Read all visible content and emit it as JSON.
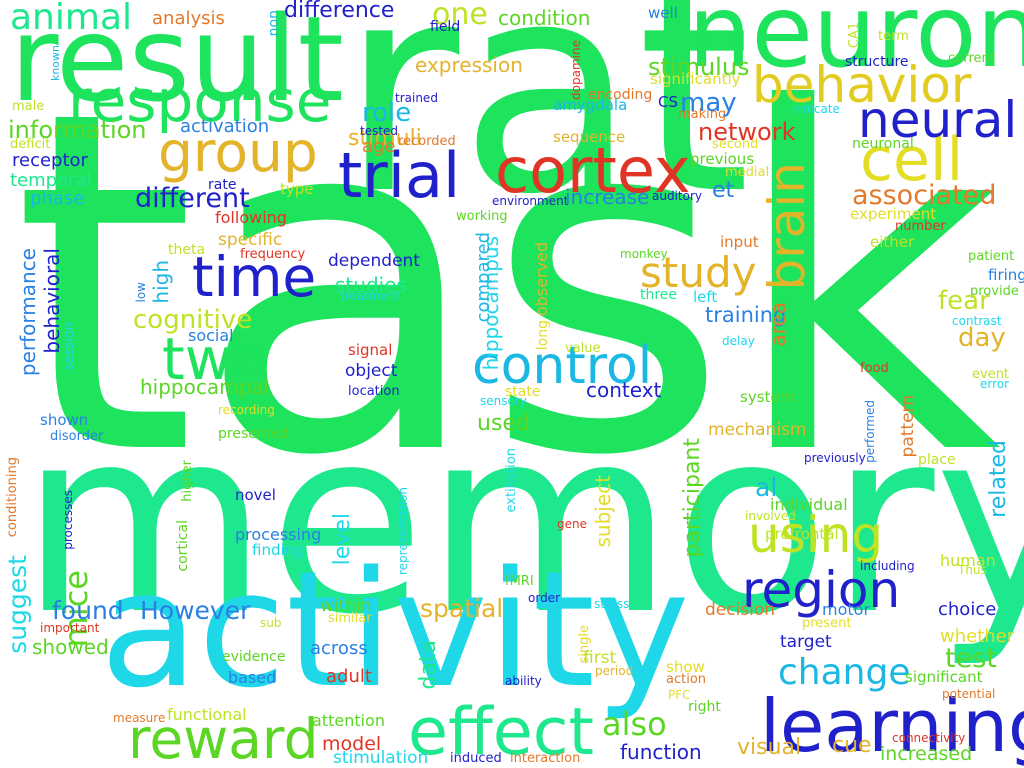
{
  "words": [
    {
      "id": "task",
      "text": "task",
      "color": "#1de35d"
    },
    {
      "id": "memory",
      "text": "memory",
      "color": "#1de88e"
    },
    {
      "id": "rat",
      "text": "rat",
      "color": "#1de35d"
    },
    {
      "id": "result",
      "text": "result",
      "color": "#1de35d"
    },
    {
      "id": "neuron",
      "text": "neuron",
      "color": "#1de35d"
    },
    {
      "id": "activity",
      "text": "activity",
      "color": "#1ed8e8"
    },
    {
      "id": "learning",
      "text": "learning",
      "color": "#2121cc"
    },
    {
      "id": "response",
      "text": "response",
      "color": "#1de35d"
    },
    {
      "id": "behavior",
      "text": "behavior",
      "color": "#e3cc21"
    },
    {
      "id": "cell",
      "text": "cell",
      "color": "#e3dd25"
    },
    {
      "id": "trial",
      "text": "trial",
      "color": "#2121cc"
    },
    {
      "id": "cortex",
      "text": "cortex",
      "color": "#e03524"
    },
    {
      "id": "group",
      "text": "group",
      "color": "#e3b32a"
    },
    {
      "id": "neural",
      "text": "neural",
      "color": "#2121cc"
    },
    {
      "id": "brain",
      "text": "brain",
      "color": "#e3b32a"
    },
    {
      "id": "time",
      "text": "time",
      "color": "#2121cc"
    },
    {
      "id": "two",
      "text": "two",
      "color": "#1de35d"
    },
    {
      "id": "control",
      "text": "control",
      "color": "#1ab8e3"
    },
    {
      "id": "study",
      "text": "study",
      "color": "#e3b32a"
    },
    {
      "id": "region",
      "text": "region",
      "color": "#2121cc"
    },
    {
      "id": "effect",
      "text": "effect",
      "color": "#1de88e"
    },
    {
      "id": "reward",
      "text": "reward",
      "color": "#5cd624"
    },
    {
      "id": "using",
      "text": "using",
      "color": "#bde324"
    },
    {
      "id": "change",
      "text": "change",
      "color": "#1ab8e3"
    },
    {
      "id": "animal",
      "text": "animal",
      "color": "#1de88e"
    },
    {
      "id": "one",
      "text": "one",
      "color": "#bde324"
    },
    {
      "id": "difference",
      "text": "difference",
      "color": "#2121cc"
    },
    {
      "id": "condition",
      "text": "condition",
      "color": "#5cd624"
    },
    {
      "id": "analysis",
      "text": "analysis",
      "color": "#e3792a"
    },
    {
      "id": "well",
      "text": "well",
      "color": "#2a80e3"
    },
    {
      "id": "field",
      "text": "field",
      "color": "#2121cc"
    },
    {
      "id": "non",
      "text": "non",
      "color": "#1ab8e3"
    },
    {
      "id": "term",
      "text": "term",
      "color": "#bde324"
    },
    {
      "id": "CA1",
      "text": "CA1",
      "color": "#bde324"
    },
    {
      "id": "current",
      "text": "current",
      "color": "#5cd624"
    },
    {
      "id": "structure",
      "text": "structure",
      "color": "#2121cc"
    },
    {
      "id": "dopamine",
      "text": "dopamine",
      "color": "#e03524"
    },
    {
      "id": "expression",
      "text": "expression",
      "color": "#e3b32a"
    },
    {
      "id": "stimulus",
      "text": "stimulus",
      "color": "#5cd624"
    },
    {
      "id": "significantly",
      "text": "significantly",
      "color": "#e3dd25"
    },
    {
      "id": "encoding",
      "text": "encoding",
      "color": "#e3792a"
    },
    {
      "id": "information",
      "text": "information",
      "color": "#5cd624"
    },
    {
      "id": "known",
      "text": "known",
      "color": "#1ab8e3"
    },
    {
      "id": "male",
      "text": "male",
      "color": "#bde324"
    },
    {
      "id": "role",
      "text": "role",
      "color": "#1ab8e3"
    },
    {
      "id": "stimuli",
      "text": "stimuli",
      "color": "#e3b32a"
    },
    {
      "id": "trained",
      "text": "trained",
      "color": "#2121cc"
    },
    {
      "id": "tested",
      "text": "tested",
      "color": "#2121cc"
    },
    {
      "id": "amygdala",
      "text": "amygdala",
      "color": "#1ab8e3"
    },
    {
      "id": "CS",
      "text": "CS",
      "color": "#2121cc"
    },
    {
      "id": "making",
      "text": "making",
      "color": "#e3792a"
    },
    {
      "id": "indicate",
      "text": "indicate",
      "color": "#1ed8e8"
    },
    {
      "id": "may",
      "text": "may",
      "color": "#2a80e3"
    },
    {
      "id": "activation",
      "text": "activation",
      "color": "#2a80e3"
    },
    {
      "id": "sequence",
      "text": "sequence",
      "color": "#e3b32a"
    },
    {
      "id": "deficit",
      "text": "deficit",
      "color": "#bde324"
    },
    {
      "id": "recorded",
      "text": "recorded",
      "color": "#e3792a"
    },
    {
      "id": "age",
      "text": "age",
      "color": "#e3792a"
    },
    {
      "id": "network",
      "text": "network",
      "color": "#e03524"
    },
    {
      "id": "second",
      "text": "second",
      "color": "#e3dd25"
    },
    {
      "id": "neuronal",
      "text": "neuronal",
      "color": "#5cd624"
    },
    {
      "id": "receptor",
      "text": "receptor",
      "color": "#2121cc"
    },
    {
      "id": "temporal",
      "text": "temporal",
      "color": "#1de88e"
    },
    {
      "id": "rate",
      "text": "rate",
      "color": "#2121cc"
    },
    {
      "id": "type",
      "text": "type",
      "color": "#bde324"
    },
    {
      "id": "previous",
      "text": "previous",
      "color": "#5cd624"
    },
    {
      "id": "medial",
      "text": "medial",
      "color": "#e3dd25"
    },
    {
      "id": "different",
      "text": "different",
      "color": "#2121cc"
    },
    {
      "id": "et",
      "text": "et",
      "color": "#2a80e3"
    },
    {
      "id": "associated",
      "text": "associated",
      "color": "#e3792a"
    },
    {
      "id": "phase",
      "text": "phase",
      "color": "#1ab8e3"
    },
    {
      "id": "environment",
      "text": "environment",
      "color": "#2121cc"
    },
    {
      "id": "auditory",
      "text": "auditory",
      "color": "#2121cc"
    },
    {
      "id": "increase",
      "text": "increase",
      "color": "#2a80e3"
    },
    {
      "id": "experiment",
      "text": "experiment",
      "color": "#e3dd25"
    },
    {
      "id": "following",
      "text": "following",
      "color": "#e03524"
    },
    {
      "id": "working",
      "text": "working",
      "color": "#5cd624"
    },
    {
      "id": "number",
      "text": "number",
      "color": "#e03524"
    },
    {
      "id": "either",
      "text": "either",
      "color": "#bde324"
    },
    {
      "id": "specific",
      "text": "specific",
      "color": "#e3b32a"
    },
    {
      "id": "frequency",
      "text": "frequency",
      "color": "#e03524"
    },
    {
      "id": "theta",
      "text": "theta",
      "color": "#bde324"
    },
    {
      "id": "input",
      "text": "input",
      "color": "#e3792a"
    },
    {
      "id": "monkey",
      "text": "monkey",
      "color": "#5cd624"
    },
    {
      "id": "patient",
      "text": "patient",
      "color": "#5cd624"
    },
    {
      "id": "high",
      "text": "high",
      "color": "#1ab8e3"
    },
    {
      "id": "dependent",
      "text": "dependent",
      "color": "#2121cc"
    },
    {
      "id": "hippocampus",
      "text": "hippocampus",
      "color": "#1ed8e8"
    },
    {
      "id": "firing",
      "text": "firing",
      "color": "#2a80e3"
    },
    {
      "id": "provide",
      "text": "provide",
      "color": "#5cd624"
    },
    {
      "id": "low",
      "text": "low",
      "color": "#2a80e3"
    },
    {
      "id": "studies",
      "text": "studies",
      "color": "#1de88e"
    },
    {
      "id": "treatment",
      "text": "treatment",
      "color": "#1ed8e8"
    },
    {
      "id": "compared",
      "text": "compared",
      "color": "#1ab8e3"
    },
    {
      "id": "observed",
      "text": "observed",
      "color": "#e3b32a"
    },
    {
      "id": "three",
      "text": "three",
      "color": "#1de88e"
    },
    {
      "id": "left",
      "text": "left",
      "color": "#1ed8e8"
    },
    {
      "id": "performance",
      "text": "performance",
      "color": "#2a80e3"
    },
    {
      "id": "behavioral",
      "text": "behavioral",
      "color": "#2121cc"
    },
    {
      "id": "cognitive",
      "text": "cognitive",
      "color": "#bde324"
    },
    {
      "id": "fear",
      "text": "fear",
      "color": "#bde324"
    },
    {
      "id": "training",
      "text": "training",
      "color": "#2a80e3"
    },
    {
      "id": "day",
      "text": "day",
      "color": "#e3b32a"
    },
    {
      "id": "contrast",
      "text": "contrast",
      "color": "#1ed8e8"
    },
    {
      "id": "social",
      "text": "social",
      "color": "#2a80e3"
    },
    {
      "id": "session",
      "text": "session",
      "color": "#1ed8e8"
    },
    {
      "id": "delay",
      "text": "delay",
      "color": "#1ed8e8"
    },
    {
      "id": "area",
      "text": "area",
      "color": "#e3792a"
    },
    {
      "id": "signal",
      "text": "signal",
      "color": "#e03524"
    },
    {
      "id": "long",
      "text": "long",
      "color": "#e3dd25"
    },
    {
      "id": "value",
      "text": "value",
      "color": "#bde324"
    },
    {
      "id": "object",
      "text": "object",
      "color": "#2121cc"
    },
    {
      "id": "hippocampal",
      "text": "hippocampal",
      "color": "#5cd624"
    },
    {
      "id": "state",
      "text": "state",
      "color": "#e3dd25"
    },
    {
      "id": "context",
      "text": "context",
      "color": "#2121cc"
    },
    {
      "id": "location",
      "text": "location",
      "color": "#2121cc"
    },
    {
      "id": "sensory",
      "text": "sensory",
      "color": "#1ed8e8"
    },
    {
      "id": "food",
      "text": "food",
      "color": "#e03524"
    },
    {
      "id": "event",
      "text": "event",
      "color": "#bde324"
    },
    {
      "id": "error",
      "text": "error",
      "color": "#1ed8e8"
    },
    {
      "id": "system",
      "text": "system",
      "color": "#5cd624"
    },
    {
      "id": "shown",
      "text": "shown",
      "color": "#2a80e3"
    },
    {
      "id": "recording",
      "text": "recording",
      "color": "#e3dd25"
    },
    {
      "id": "used",
      "text": "used",
      "color": "#5cd624"
    },
    {
      "id": "pattern",
      "text": "pattern",
      "color": "#e3792a"
    },
    {
      "id": "performed",
      "text": "performed",
      "color": "#2a80e3"
    },
    {
      "id": "disorder",
      "text": "disorder",
      "color": "#2a80e3"
    },
    {
      "id": "presented",
      "text": "presented",
      "color": "#5cd624"
    },
    {
      "id": "mechanism",
      "text": "mechanism",
      "color": "#e3b32a"
    },
    {
      "id": "place",
      "text": "place",
      "color": "#bde324"
    },
    {
      "id": "conditioning",
      "text": "conditioning",
      "color": "#e3792a"
    },
    {
      "id": "higher",
      "text": "higher",
      "color": "#5cd624"
    },
    {
      "id": "previously",
      "text": "previously",
      "color": "#2121cc"
    },
    {
      "id": "extinction",
      "text": "extinction",
      "color": "#1ed8e8"
    },
    {
      "id": "participant",
      "text": "participant",
      "color": "#5cd624"
    },
    {
      "id": "al",
      "text": "al",
      "color": "#1ab8e3"
    },
    {
      "id": "related",
      "text": "related",
      "color": "#1ab8e3"
    },
    {
      "id": "novel",
      "text": "novel",
      "color": "#2121cc"
    },
    {
      "id": "individual",
      "text": "individual",
      "color": "#5cd624"
    },
    {
      "id": "processes",
      "text": "processes",
      "color": "#2121cc"
    },
    {
      "id": "cortical",
      "text": "cortical",
      "color": "#5cd624"
    },
    {
      "id": "subject",
      "text": "subject",
      "color": "#e3dd25"
    },
    {
      "id": "representation",
      "text": "representation",
      "color": "#1ed8e8"
    },
    {
      "id": "involved",
      "text": "involved",
      "color": "#bde324"
    },
    {
      "id": "gene",
      "text": "gene",
      "color": "#e03524"
    },
    {
      "id": "processing",
      "text": "processing",
      "color": "#2a80e3"
    },
    {
      "id": "level",
      "text": "level",
      "color": "#1ed8e8"
    },
    {
      "id": "finding",
      "text": "finding",
      "color": "#1ed8e8"
    },
    {
      "id": "prefrontal",
      "text": "prefrontal",
      "color": "#bde324"
    },
    {
      "id": "including",
      "text": "including",
      "color": "#2121cc"
    },
    {
      "id": "human",
      "text": "human",
      "color": "#bde324"
    },
    {
      "id": "Thus",
      "text": "Thus",
      "color": "#bde324"
    },
    {
      "id": "suggest",
      "text": "suggest",
      "color": "#1ed8e8"
    },
    {
      "id": "mice",
      "text": "mice",
      "color": "#5cd624"
    },
    {
      "id": "found",
      "text": "found",
      "color": "#2a80e3"
    },
    {
      "id": "However",
      "text": "However",
      "color": "#2a80e3"
    },
    {
      "id": "within",
      "text": "within",
      "color": "#5cd624"
    },
    {
      "id": "spatial",
      "text": "spatial",
      "color": "#e3b32a"
    },
    {
      "id": "fMRI",
      "text": "fMRI",
      "color": "#5cd624"
    },
    {
      "id": "order",
      "text": "order",
      "color": "#2121cc"
    },
    {
      "id": "stress",
      "text": "stress",
      "color": "#1ed8e8"
    },
    {
      "id": "decision",
      "text": "decision",
      "color": "#e3792a"
    },
    {
      "id": "motor",
      "text": "motor",
      "color": "#2a80e3"
    },
    {
      "id": "choice",
      "text": "choice",
      "color": "#2121cc"
    },
    {
      "id": "important",
      "text": "important",
      "color": "#e03524"
    },
    {
      "id": "sub",
      "text": "sub",
      "color": "#bde324"
    },
    {
      "id": "similar",
      "text": "similar",
      "color": "#e3dd25"
    },
    {
      "id": "single",
      "text": "single",
      "color": "#e3dd25"
    },
    {
      "id": "present",
      "text": "present",
      "color": "#e3dd25"
    },
    {
      "id": "whether",
      "text": "whether",
      "color": "#e3dd25"
    },
    {
      "id": "showed",
      "text": "showed",
      "color": "#5cd624"
    },
    {
      "id": "across",
      "text": "across",
      "color": "#2a80e3"
    },
    {
      "id": "target",
      "text": "target",
      "color": "#2121cc"
    },
    {
      "id": "test",
      "text": "test",
      "color": "#5cd624"
    },
    {
      "id": "evidence",
      "text": "evidence",
      "color": "#5cd624"
    },
    {
      "id": "data",
      "text": "data",
      "color": "#1de88e"
    },
    {
      "id": "first",
      "text": "first",
      "color": "#bde324"
    },
    {
      "id": "period",
      "text": "period",
      "color": "#e3b32a"
    },
    {
      "id": "show",
      "text": "show",
      "color": "#e3dd25"
    },
    {
      "id": "significant",
      "text": "significant",
      "color": "#5cd624"
    },
    {
      "id": "based",
      "text": "based",
      "color": "#2a80e3"
    },
    {
      "id": "adult",
      "text": "adult",
      "color": "#e03524"
    },
    {
      "id": "ability",
      "text": "ability",
      "color": "#2121cc"
    },
    {
      "id": "action",
      "text": "action",
      "color": "#e3792a"
    },
    {
      "id": "PFC",
      "text": "PFC",
      "color": "#e3dd25"
    },
    {
      "id": "potential",
      "text": "potential",
      "color": "#e3792a"
    },
    {
      "id": "also",
      "text": "also",
      "color": "#5cd624"
    },
    {
      "id": "right",
      "text": "right",
      "color": "#5cd624"
    },
    {
      "id": "functional",
      "text": "functional",
      "color": "#bde324"
    },
    {
      "id": "measure",
      "text": "measure",
      "color": "#e3792a"
    },
    {
      "id": "attention",
      "text": "attention",
      "color": "#5cd624"
    },
    {
      "id": "model",
      "text": "model",
      "color": "#e03524"
    },
    {
      "id": "function",
      "text": "function",
      "color": "#2121cc"
    },
    {
      "id": "visual",
      "text": "visual",
      "color": "#e3b32a"
    },
    {
      "id": "cue",
      "text": "cue",
      "color": "#e3b32a"
    },
    {
      "id": "connectivity",
      "text": "connectivity",
      "color": "#e03524"
    },
    {
      "id": "increased",
      "text": "increased",
      "color": "#5cd624"
    },
    {
      "id": "stimulation",
      "text": "stimulation",
      "color": "#1ed8e8"
    },
    {
      "id": "induced",
      "text": "induced",
      "color": "#2121cc"
    },
    {
      "id": "interaction",
      "text": "interaction",
      "color": "#e3792a"
    }
  ]
}
